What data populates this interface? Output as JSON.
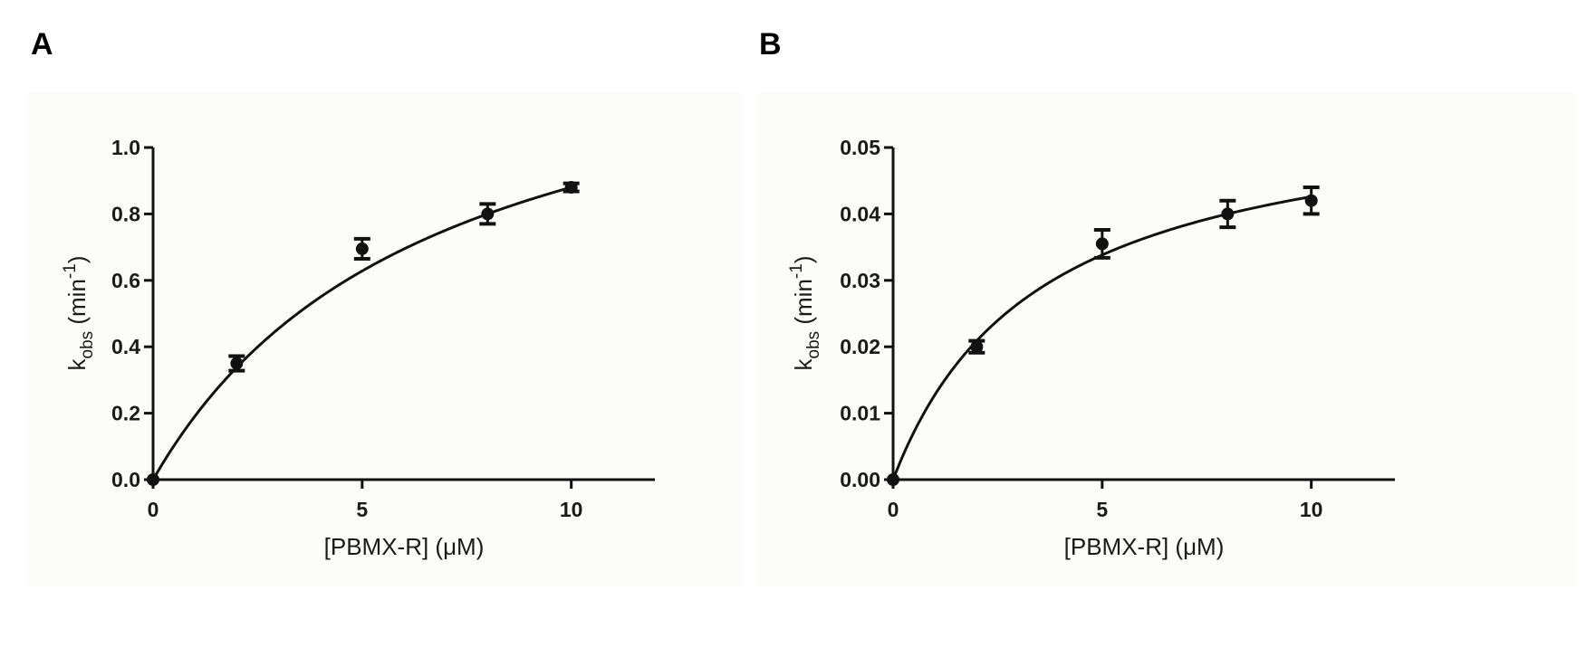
{
  "panels": {
    "a": {
      "letter": "A"
    },
    "b": {
      "letter": "B"
    }
  },
  "chart_data": [
    {
      "panel": "A",
      "type": "scatter",
      "fit": "hyperbolic",
      "xlabel": "[PBMX-R] (μM)",
      "ylabel": {
        "base": "k",
        "subscript": "obs",
        "unit_prefix": " (min",
        "superscript": "-1",
        "unit_suffix": ")"
      },
      "xlim": [
        0,
        12
      ],
      "ylim": [
        0,
        1.0
      ],
      "xticks": [
        0,
        5,
        10
      ],
      "xtick_labels": [
        "0",
        "5",
        "10"
      ],
      "yticks": [
        0,
        0.2,
        0.4,
        0.6,
        0.8,
        1.0
      ],
      "ytick_labels": [
        "0.0",
        "0.2",
        "0.4",
        "0.6",
        "0.8",
        "1.0"
      ],
      "x": [
        0,
        2,
        5,
        8,
        10
      ],
      "y": [
        0,
        0.35,
        0.695,
        0.8,
        0.88
      ],
      "error": [
        0,
        0.022,
        0.03,
        0.03,
        0.012
      ],
      "curve": {
        "vmax": 1.47,
        "km": 6.7
      },
      "color": "#111111"
    },
    {
      "panel": "B",
      "type": "scatter",
      "fit": "hyperbolic",
      "xlabel": "[PBMX-R] (μM)",
      "ylabel": {
        "base": "k",
        "subscript": "obs",
        "unit_prefix": " (min",
        "superscript": "-1",
        "unit_suffix": ")"
      },
      "xlim": [
        0,
        12
      ],
      "ylim": [
        0,
        0.05
      ],
      "xticks": [
        0,
        5,
        10
      ],
      "xtick_labels": [
        "0",
        "5",
        "10"
      ],
      "yticks": [
        0,
        0.01,
        0.02,
        0.03,
        0.04,
        0.05
      ],
      "ytick_labels": [
        "0.00",
        "0.01",
        "0.02",
        "0.03",
        "0.04",
        "0.05"
      ],
      "x": [
        0,
        2,
        5,
        8,
        10
      ],
      "y": [
        0,
        0.02,
        0.0355,
        0.04,
        0.042
      ],
      "error": [
        0,
        0.0009,
        0.0021,
        0.002,
        0.002
      ],
      "curve": {
        "vmax": 0.0575,
        "km": 3.5
      },
      "color": "#111111"
    }
  ]
}
